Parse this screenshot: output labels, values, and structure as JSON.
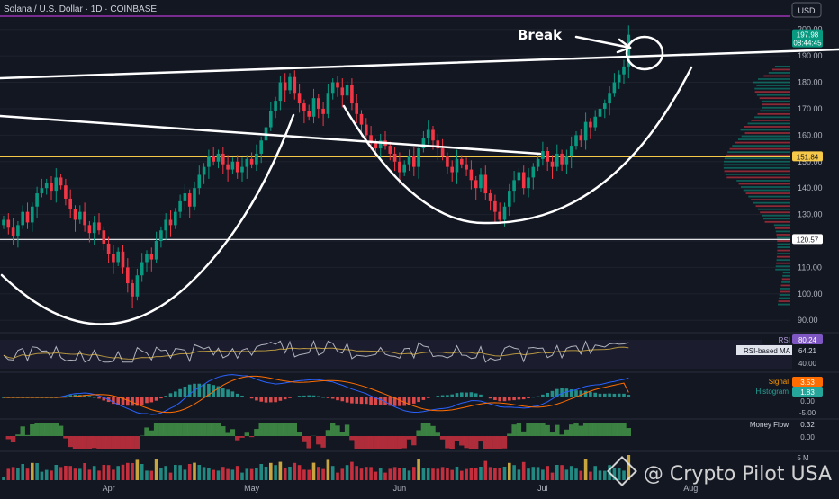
{
  "header": {
    "symbol": "Solana / U.S. Dollar · 1D · COINBASE",
    "currency": "USD"
  },
  "price_tags": [
    {
      "value": "197.98",
      "sub": "08:44:45",
      "color": "#089981",
      "price": 197.98
    },
    {
      "value": "151.84",
      "sub": "",
      "color": "#f7c948",
      "price": 151.84
    },
    {
      "value": "120.57",
      "sub": "",
      "color": "#ffffff",
      "price": 120.57
    }
  ],
  "annotation": {
    "text": "Break"
  },
  "watermark": {
    "text": "@ Crypto Pilot USA"
  },
  "indicators": {
    "rsi": {
      "label": "RSI",
      "value": "80.24",
      "ma_label": "RSI-based MA",
      "ma_value": "64.21",
      "levels": [
        "40.00"
      ]
    },
    "macd": {
      "signal_label": "Signal",
      "signal_value": "3.53",
      "hist_label": "Histogram",
      "hist_value": "1.83",
      "levels": [
        "0.00",
        "-5.00"
      ]
    },
    "money_flow": {
      "label": "Money Flow",
      "value": "0.32",
      "levels": [
        "0.00"
      ]
    },
    "volume": {
      "levels": [
        "5 M"
      ]
    }
  },
  "chart_data": {
    "type": "candlestick",
    "x_axis_labels": [
      {
        "label": "Apr",
        "date": "2024-04-01"
      },
      {
        "label": "May",
        "date": "2024-05-01"
      },
      {
        "label": "Jun",
        "date": "2024-06-01"
      },
      {
        "label": "Jul",
        "date": "2024-07-01"
      },
      {
        "label": "Aug",
        "date": "2024-08-01"
      }
    ],
    "y_ticks": [
      200,
      190,
      180,
      170,
      160,
      150,
      140,
      130,
      120,
      110,
      100,
      90
    ],
    "y_tick_labels": [
      "200.00",
      "190.00",
      "180.00",
      "170.00",
      "160.00",
      "150.00",
      "140.00",
      "130.00",
      "120.00",
      "110.00",
      "100.00",
      "90.00"
    ],
    "ylim": [
      86,
      205
    ],
    "horizontal_levels": [
      151.84,
      120.57
    ],
    "start_date": "2024-03-10",
    "end_date": "2024-07-21",
    "close": [
      128,
      125,
      122,
      126,
      131,
      127,
      133,
      138,
      140,
      142,
      139,
      144,
      141,
      136,
      132,
      128,
      131,
      126,
      123,
      127,
      124,
      119,
      115,
      112,
      116,
      110,
      104,
      99,
      107,
      112,
      115,
      113,
      120,
      124,
      128,
      126,
      131,
      135,
      138,
      133,
      140,
      145,
      148,
      152,
      150,
      153,
      149,
      147,
      150,
      146,
      148,
      151,
      149,
      153,
      158,
      163,
      169,
      173,
      180,
      177,
      182,
      176,
      172,
      169,
      167,
      174,
      170,
      168,
      176,
      180,
      178,
      175,
      179,
      172,
      168,
      164,
      160,
      157,
      155,
      158,
      156,
      153,
      150,
      146,
      149,
      152,
      148,
      155,
      159,
      162,
      158,
      155,
      152,
      148,
      146,
      151,
      149,
      147,
      143,
      140,
      145,
      138,
      135,
      131,
      128,
      133,
      139,
      143,
      146,
      140,
      144,
      148,
      151,
      154,
      150,
      148,
      153,
      149,
      152,
      156,
      160,
      158,
      165,
      163,
      167,
      170,
      172,
      176,
      180,
      183,
      186,
      197.98
    ],
    "rsi": {
      "last": 80.24,
      "ma_last": 64.21
    },
    "macd": {
      "signal_last": 3.53,
      "histogram_last": 1.83
    },
    "money_flow_last": 0.32
  }
}
